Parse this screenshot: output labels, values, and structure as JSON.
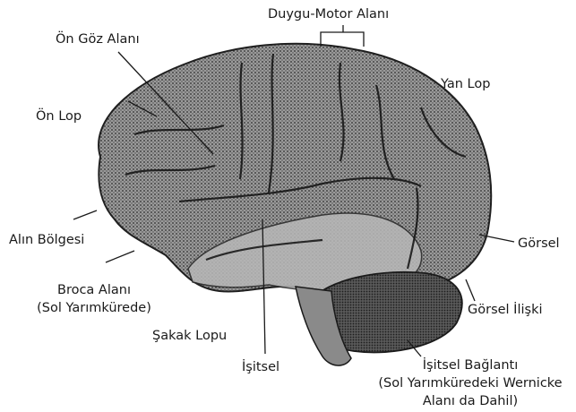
{
  "labels": {
    "sensory_motor": "Duygu-Motor Alanı",
    "frontal_eye": "Ön Göz Alanı",
    "parietal": "Yan Lop",
    "frontal_lobe": "Ön Lop",
    "prefrontal": "Alın Bölgesi",
    "visual": "Görsel",
    "broca_line1": "Broca Alanı",
    "broca_line2": "(Sol Yarımkürede)",
    "visual_assoc": "Görsel İlişki",
    "temporal": "Şakak Lopu",
    "auditory": "İşitsel",
    "auditory_assoc_line1": "İşitsel Bağlantı",
    "auditory_assoc_line2": "(Sol Yarımküredeki Wernicke",
    "auditory_assoc_line3": "Alanı da Dahil)"
  }
}
